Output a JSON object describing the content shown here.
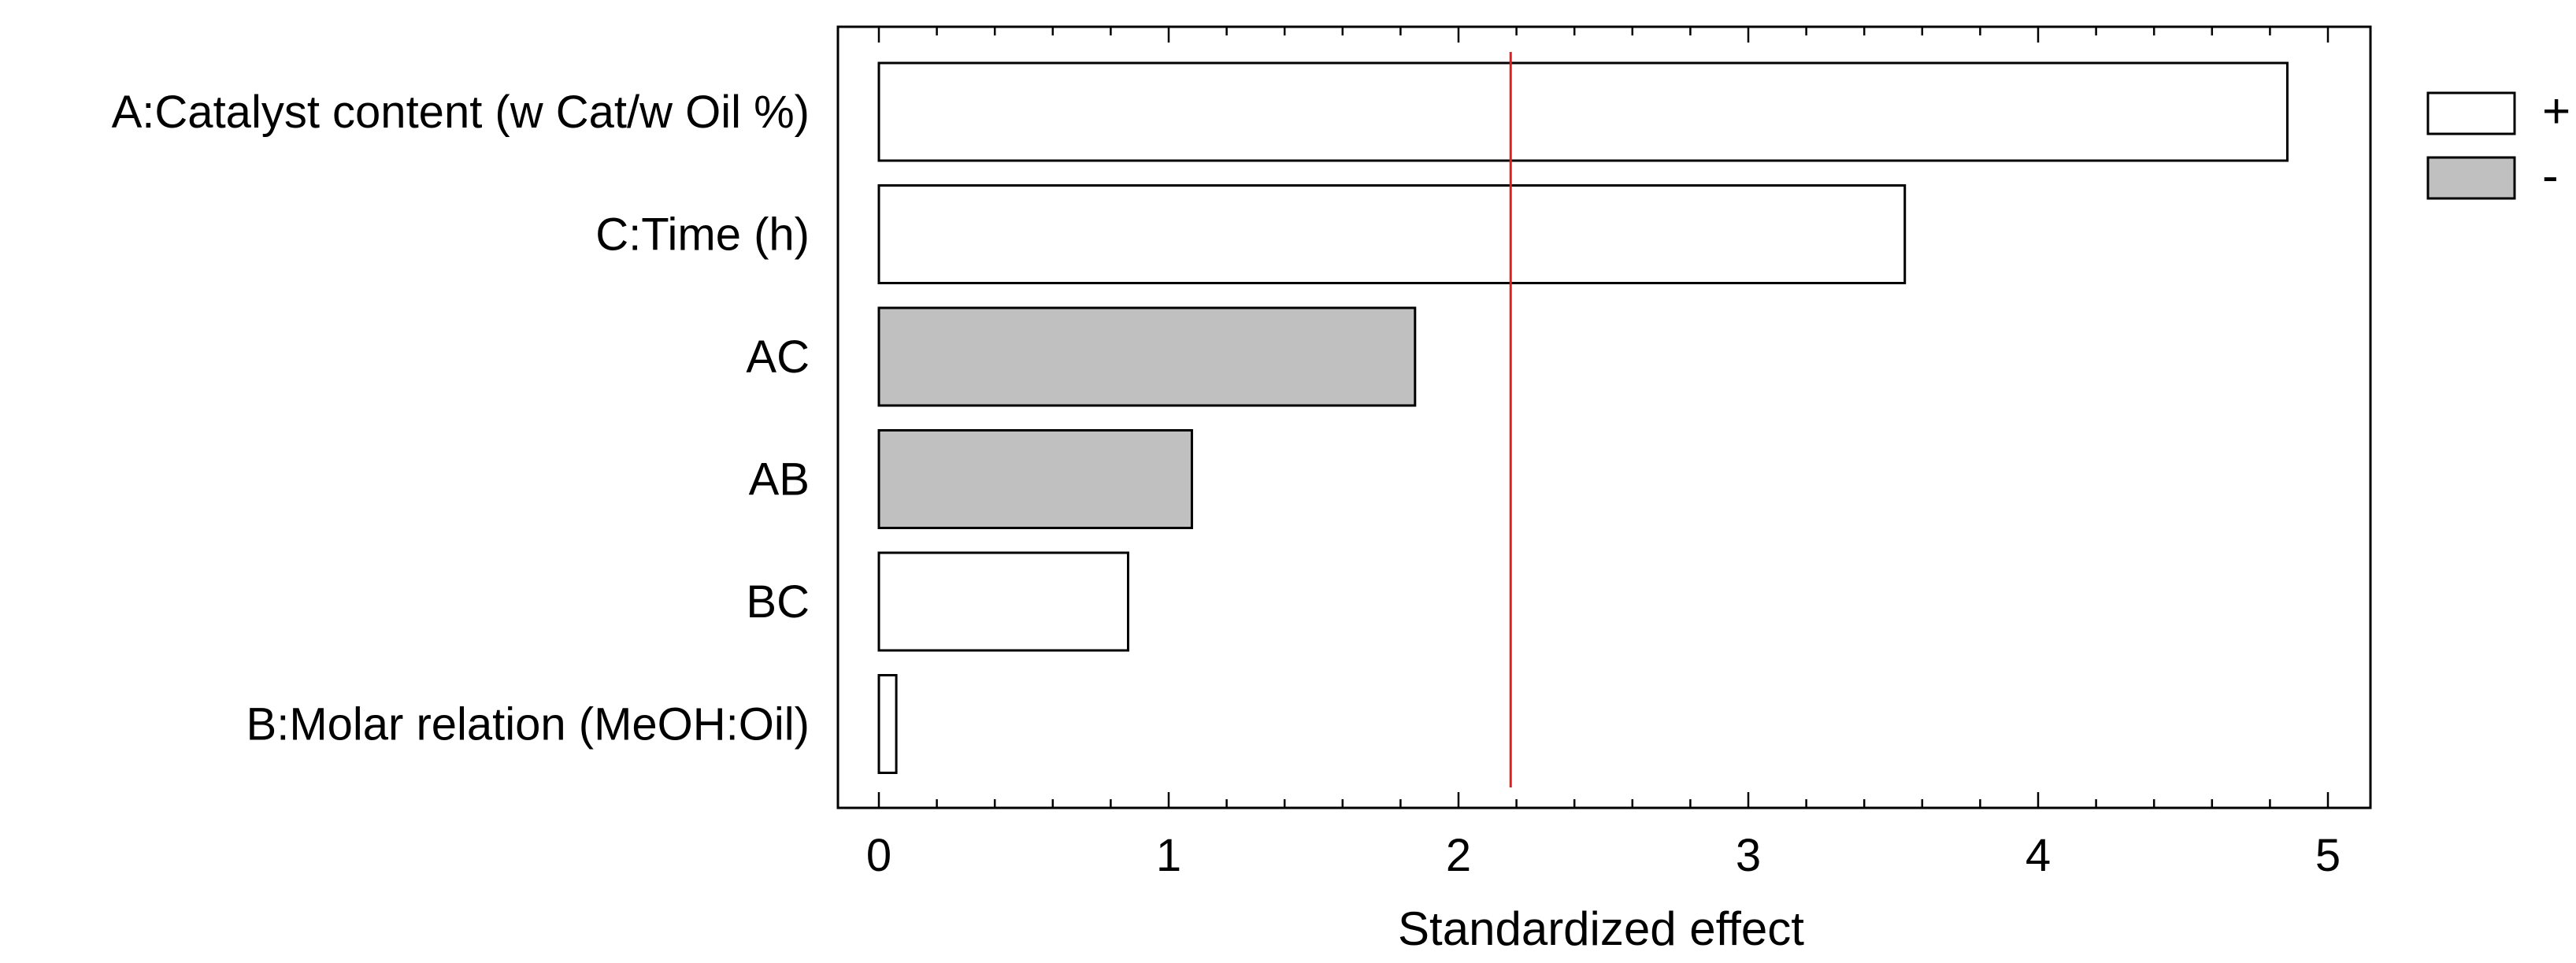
{
  "chart_data": {
    "type": "bar",
    "orientation": "horizontal",
    "title": "",
    "xlabel": "Standardized effect",
    "ylabel": "",
    "xlim": [
      0,
      5
    ],
    "x_ticks": [
      0,
      1,
      2,
      3,
      4,
      5
    ],
    "x_tick_labels": [
      "0",
      "1",
      "2",
      "3",
      "4",
      "5"
    ],
    "categories": [
      "A:Catalyst content (w Cat/w Oil %)",
      "C:Time (h)",
      "AC",
      "AB",
      "BC",
      "B:Molar relation (MeOH:Oil)"
    ],
    "values": [
      4.86,
      3.54,
      1.85,
      1.08,
      0.86,
      0.06
    ],
    "signs": [
      "+",
      "+",
      "-",
      "-",
      "+",
      "+"
    ],
    "reference_line": {
      "value": 2.18,
      "color": "#e0201c"
    },
    "legend": {
      "placement": "top-right",
      "entries": [
        {
          "label": "+",
          "color": "#ffffff"
        },
        {
          "label": "-",
          "color": "#c0c0c0"
        }
      ]
    },
    "colors": {
      "positive": "#ffffff",
      "negative": "#c0c0c0",
      "stroke": "#000000"
    },
    "grid": false
  }
}
